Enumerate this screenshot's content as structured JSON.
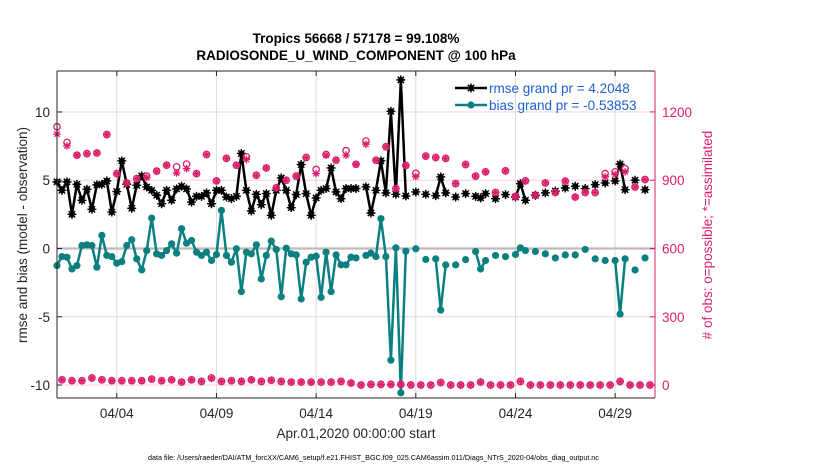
{
  "chart_data": {
    "type": "line",
    "title": [
      "Tropics 56668 / 57178 = 99.108%",
      "RADIOSONDE_U_WIND_COMPONENT @ 100 hPa"
    ],
    "xlabel": "Apr.01,2020 00:00:00 start",
    "ylabel": "rmse and bias (model - observation)",
    "y2label": "# of obs: o=possible; *=assimilated",
    "x_units": "days since Apr.01,2020 00:00:00",
    "xlim": [
      0,
      30
    ],
    "xticks": [
      3,
      8,
      13,
      18,
      23,
      28
    ],
    "xticklabels": [
      "04/04",
      "04/09",
      "04/14",
      "04/19",
      "04/24",
      "04/29"
    ],
    "ylim": [
      -10.95,
      13
    ],
    "yticks": [
      -10,
      -5,
      0,
      5,
      10
    ],
    "yticklabels": [
      "-10",
      "-5",
      "0",
      "5",
      "10"
    ],
    "y2lim": [
      -57,
      1380
    ],
    "y2ticks": [
      0,
      300,
      600,
      900,
      1200
    ],
    "y2ticklabels": [
      "0",
      "300",
      "600",
      "900",
      "1200"
    ],
    "grid": true,
    "legend": {
      "placement": "top-right",
      "entries": [
        {
          "label": "rmse grand pr = 4.2048",
          "series": "rmse"
        },
        {
          "label": "bias grand pr = -0.53853",
          "series": "bias"
        }
      ]
    },
    "colors": {
      "rmse": "#000000",
      "bias": "#0a8080",
      "obs": "#dc1f6c",
      "legend_text": "#1f5fd6"
    },
    "x": [
      0,
      0.25,
      0.5,
      0.75,
      1,
      1.25,
      1.5,
      1.75,
      2,
      2.25,
      2.5,
      2.75,
      3,
      3.25,
      3.5,
      3.75,
      4,
      4.25,
      4.5,
      4.75,
      5,
      5.25,
      5.5,
      5.75,
      6,
      6.25,
      6.5,
      6.75,
      7,
      7.25,
      7.5,
      7.75,
      8,
      8.25,
      8.5,
      8.75,
      9,
      9.25,
      9.5,
      9.75,
      10,
      10.25,
      10.5,
      10.75,
      11,
      11.25,
      11.5,
      11.75,
      12,
      12.25,
      12.5,
      12.75,
      13,
      13.25,
      13.5,
      13.75,
      14,
      14.25,
      14.5,
      14.75,
      15,
      15.25,
      15.5,
      15.75,
      16,
      16.25,
      16.5,
      16.75,
      17,
      17.25,
      17.5,
      17.75,
      18,
      18.25,
      18.5,
      18.75,
      19,
      19.25,
      19.5,
      19.75,
      20,
      20.25,
      20.5,
      20.75,
      21,
      21.25,
      21.5,
      21.75,
      22,
      22.25,
      22.5,
      22.75,
      23,
      23.25,
      23.5,
      23.75,
      24,
      24.25,
      24.5,
      24.75,
      25,
      25.25,
      25.5,
      25.75,
      26,
      26.25,
      26.5,
      26.75,
      27,
      27.25,
      27.5,
      27.75,
      28,
      28.25,
      28.5,
      28.75,
      29,
      29.25,
      29.5,
      29.75
    ],
    "series": [
      {
        "name": "rmse",
        "axis": "left",
        "values": [
          4.88,
          4.26,
          4.88,
          2.5,
          4.7,
          3.53,
          4.34,
          2.87,
          4.66,
          4.7,
          4.95,
          2.67,
          4.17,
          6.42,
          4.7,
          2.94,
          4.63,
          5.32,
          4.51,
          4.26,
          3.9,
          3.28,
          4.26,
          3.53,
          4.36,
          4.56,
          4.36,
          3.4,
          3.82,
          3.82,
          4.07,
          3.28,
          4.26,
          4.26,
          3.77,
          3.65,
          3.82,
          6.96,
          4.26,
          2.75,
          3.97,
          3.21,
          4.02,
          2.43,
          4.26,
          5.17,
          4.26,
          2.99,
          3.95,
          6.15,
          4.02,
          2.43,
          3.7,
          4.26,
          4.39,
          5.9,
          4.14,
          3.65,
          4.39,
          4.39,
          4.39,
          null,
          4.51,
          2.6,
          4.26,
          6.42,
          4.07,
          10.05,
          3.97,
          12.35,
          3.85,
          null,
          4.14,
          null,
          3.97,
          null,
          3.87,
          5.24,
          4.07,
          null,
          3.77,
          null,
          4.02,
          null,
          3.82,
          3.7,
          4.02,
          null,
          3.65,
          null,
          3.95,
          null,
          3.77,
          4.75,
          3.53,
          null,
          3.9,
          null,
          4.07,
          null,
          4.21,
          null,
          4.43,
          null,
          4.56,
          null,
          4.39,
          null,
          4.68,
          null,
          4.8,
          null,
          4.95,
          6.18,
          4.31,
          null,
          5.0,
          null,
          4.31,
          null
        ]
      },
      {
        "name": "bias",
        "axis": "left",
        "values": [
          -1.25,
          -0.59,
          -0.64,
          -1.5,
          -1.25,
          0.22,
          0.27,
          0.22,
          -1.37,
          0.96,
          -0.51,
          -0.59,
          -1.08,
          -0.96,
          0.22,
          0.64,
          -0.76,
          -1.57,
          -0.15,
          2.23,
          -0.39,
          -0.51,
          -0.15,
          0.34,
          -0.34,
          1.45,
          0.39,
          0.59,
          -0.27,
          -0.51,
          -0.27,
          -0.88,
          -0.44,
          2.79,
          -0.51,
          -1.0,
          -0.02,
          -3.16,
          -0.27,
          -0.39,
          0.27,
          -2.23,
          -0.51,
          0.54,
          -0.07,
          -3.53,
          0.02,
          -0.39,
          -0.47,
          -3.7,
          -1.0,
          -0.64,
          -0.56,
          -3.58,
          -0.27,
          -3.16,
          -0.47,
          -1.2,
          -1.2,
          -0.64,
          -0.69,
          null,
          -0.51,
          -0.34,
          -0.59,
          2.18,
          -0.59,
          -8.18,
          0.05,
          -10.57,
          -0.2,
          null,
          -0.02,
          null,
          -0.8,
          null,
          -0.76,
          -4.51,
          -1.2,
          null,
          -1.2,
          null,
          -0.81,
          null,
          -0.22,
          -1.5,
          -0.88,
          null,
          -0.51,
          null,
          -0.59,
          null,
          -0.44,
          0.05,
          -0.15,
          null,
          -0.22,
          null,
          -0.39,
          null,
          -0.69,
          null,
          -0.47,
          null,
          -0.47,
          null,
          -0.07,
          null,
          -0.76,
          null,
          -0.88,
          null,
          -0.88,
          -4.8,
          -0.76,
          null,
          -1.57,
          null,
          -0.69,
          null
        ]
      },
      {
        "name": "obs possible",
        "axis": "right",
        "marker": "o",
        "values": [
          1135,
          23,
          1066,
          19,
          1010,
          19,
          1017,
          31,
          1020,
          23,
          1101,
          19,
          929,
          19,
          888,
          19,
          907,
          19,
          918,
          26,
          940,
          19,
          966,
          23,
          959,
          13,
          971,
          23,
          929,
          16,
          1013,
          31,
          897,
          16,
          996,
          19,
          966,
          16,
          1003,
          23,
          922,
          16,
          954,
          21,
          867,
          16,
          900,
          13,
          918,
          13,
          1000,
          13,
          947,
          13,
          1013,
          13,
          988,
          16,
          1030,
          9,
          970,
          0,
          1072,
          3,
          988,
          3,
          1047,
          3,
          863,
          3,
          965,
          0,
          930,
          0,
          1006,
          0,
          1000,
          11,
          996,
          0,
          885,
          0,
          969,
          0,
          918,
          13,
          937,
          0,
          846,
          0,
          941,
          0,
          829,
          16,
          897,
          0,
          834,
          0,
          888,
          0,
          846,
          0,
          896,
          0,
          826,
          0,
          846,
          0,
          846,
          0,
          929,
          0,
          937,
          16,
          951,
          0,
          870,
          0,
          903,
          0
        ]
      },
      {
        "name": "obs assimilated",
        "axis": "right",
        "marker": "*",
        "values": [
          1103,
          23,
          1051,
          19,
          1010,
          19,
          1017,
          31,
          1020,
          23,
          1101,
          19,
          929,
          19,
          888,
          19,
          907,
          19,
          912,
          26,
          940,
          19,
          966,
          23,
          932,
          13,
          951,
          23,
          929,
          16,
          1013,
          31,
          897,
          16,
          996,
          19,
          966,
          16,
          991,
          23,
          922,
          16,
          954,
          21,
          867,
          16,
          900,
          13,
          918,
          13,
          1000,
          13,
          929,
          13,
          1010,
          13,
          988,
          16,
          1010,
          9,
          970,
          0,
          1058,
          3,
          988,
          3,
          1047,
          3,
          863,
          3,
          965,
          0,
          916,
          0,
          1006,
          0,
          1000,
          11,
          996,
          0,
          885,
          0,
          969,
          0,
          918,
          13,
          937,
          0,
          846,
          0,
          941,
          0,
          829,
          16,
          897,
          0,
          834,
          0,
          888,
          0,
          846,
          0,
          896,
          0,
          826,
          0,
          846,
          0,
          846,
          0,
          915,
          0,
          925,
          16,
          937,
          0,
          870,
          0,
          903,
          0
        ]
      }
    ]
  },
  "footer": {
    "data_file_note": "data file: /Users/raeder/DAI/ATM_forcXX/CAM6_setup/f.e21.FHIST_BGC.f09_025.CAM6assim.011/Diags_NTrS_2020-04/obs_diag_output.nc"
  }
}
